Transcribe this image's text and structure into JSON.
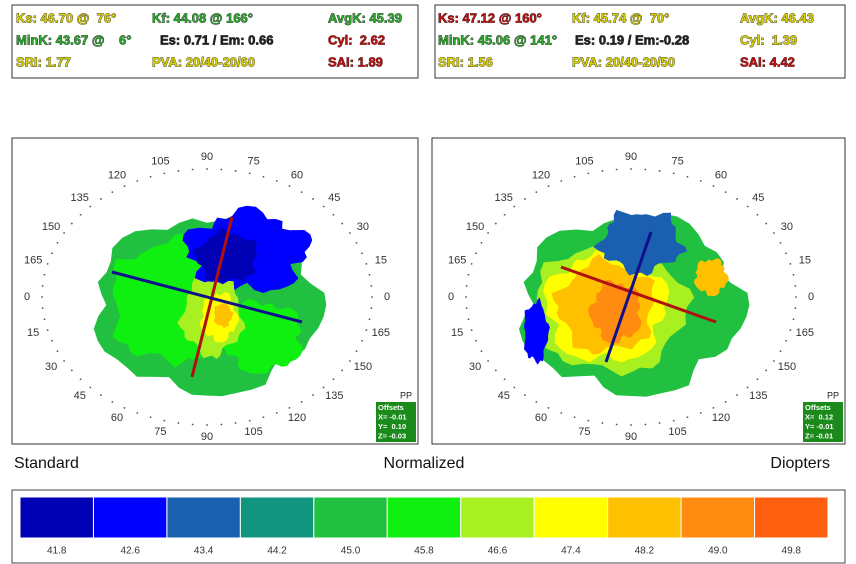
{
  "panels": [
    {
      "stats": [
        [
          {
            "text": "Ks: 46.70 @  76°",
            "color": "#d8d000"
          },
          {
            "text": "Kf: 44.08 @ 166°",
            "color": "#2fa82f"
          },
          {
            "text": "AvgK: 45.39",
            "color": "#2fa82f"
          }
        ],
        [
          {
            "text": "MinK: 43.67 @    6°",
            "color": "#2fa82f"
          },
          {
            "text": "Es: 0.71 / Em: 0.66",
            "color": "#222222"
          },
          {
            "text": "Cyl:  2.62",
            "color": "#c01010"
          }
        ],
        [
          {
            "text": "SRI: 1.77",
            "color": "#d8d000"
          },
          {
            "text": "PVA: 20/40-20/60",
            "color": "#d8d000"
          },
          {
            "text": "SAI: 1.89",
            "color": "#c01010"
          }
        ]
      ],
      "angles": [
        "0",
        "15",
        "30",
        "45",
        "60",
        "75",
        "90",
        "105",
        "120",
        "135",
        "150",
        "165",
        "0",
        "15",
        "30",
        "45",
        "60",
        "75",
        "90",
        "105",
        "120",
        "135",
        "150",
        "165"
      ],
      "pp": "PP",
      "offsets": {
        "title": "Offsets",
        "x": "X= -0.01",
        "y": "Y=  0.10",
        "z": "Z= -0.03"
      }
    },
    {
      "stats": [
        [
          {
            "text": "Ks: 47.12 @ 160°",
            "color": "#c01010"
          },
          {
            "text": "Kf: 45.74 @  70°",
            "color": "#d8d000"
          },
          {
            "text": "AvgK: 46.43",
            "color": "#d8d000"
          }
        ],
        [
          {
            "text": "MinK: 45.06 @ 141°",
            "color": "#2fa82f"
          },
          {
            "text": "Es: 0.19 / Em:-0.28",
            "color": "#222222"
          },
          {
            "text": "Cyl:  1.39",
            "color": "#d8d000"
          }
        ],
        [
          {
            "text": "SRI: 1.56",
            "color": "#d8d000"
          },
          {
            "text": "PVA: 20/40-20/50",
            "color": "#d8d000"
          },
          {
            "text": "SAI: 4.42",
            "color": "#c01010"
          }
        ]
      ],
      "angles": [
        "0",
        "15",
        "30",
        "45",
        "60",
        "75",
        "90",
        "105",
        "120",
        "135",
        "150",
        "165",
        "0",
        "15",
        "30",
        "45",
        "60",
        "75",
        "90",
        "105",
        "120",
        "135",
        "150",
        "165"
      ],
      "pp": "PP",
      "offsets": {
        "title": "Offsets",
        "x": "X=  0.12",
        "y": "Y= -0.01",
        "z": "Z= -0.01"
      }
    }
  ],
  "labels": {
    "left": "Standard",
    "center": "Normalized",
    "right": "Diopters"
  },
  "scale": [
    {
      "color": "#0000b4",
      "label": "41.8"
    },
    {
      "color": "#0000ff",
      "label": "42.6"
    },
    {
      "color": "#1a5fb0",
      "label": "43.4"
    },
    {
      "color": "#119480",
      "label": "44.2"
    },
    {
      "color": "#22c040",
      "label": "45.0"
    },
    {
      "color": "#10f010",
      "label": "45.8"
    },
    {
      "color": "#a8f020",
      "label": "46.6"
    },
    {
      "color": "#ffff00",
      "label": "47.4"
    },
    {
      "color": "#ffc000",
      "label": "48.2"
    },
    {
      "color": "#ff8c10",
      "label": "49.0"
    },
    {
      "color": "#ff6010",
      "label": "49.8"
    }
  ]
}
